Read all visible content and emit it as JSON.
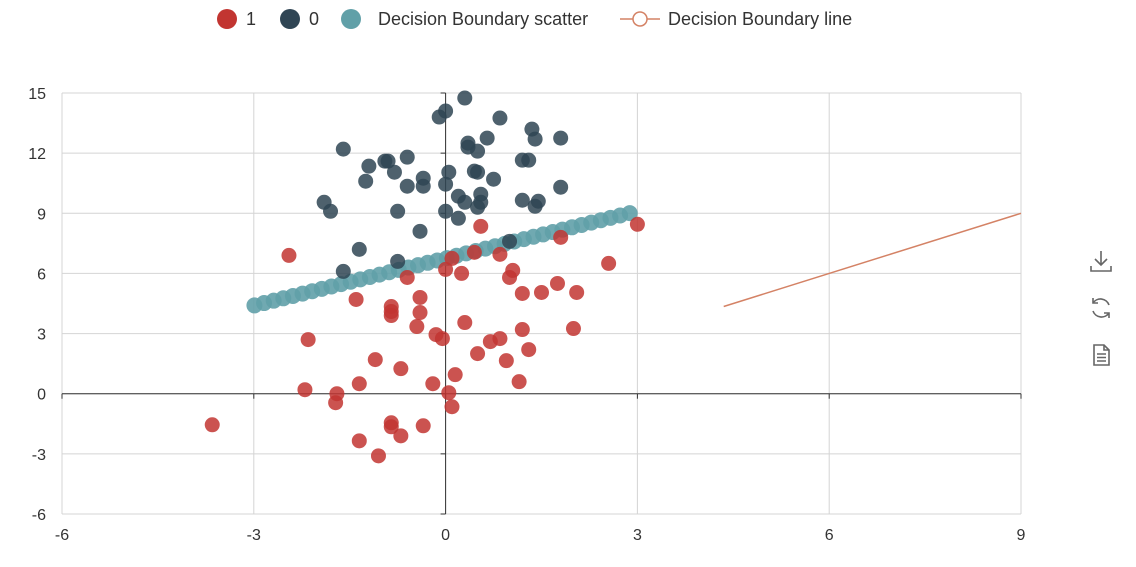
{
  "chart_data": {
    "type": "scatter",
    "legend": {
      "placement": "top",
      "items": [
        {
          "label": "1",
          "color": "#c23531",
          "kind": "scatter"
        },
        {
          "label": "0",
          "color": "#2f4554",
          "kind": "scatter"
        },
        {
          "label": "Decision Boundary scatter",
          "color": "#61a0a8",
          "kind": "scatter"
        },
        {
          "label": "Decision Boundary line",
          "color": "#d48265",
          "kind": "line"
        }
      ]
    },
    "x_axis": {
      "min": -6,
      "max": 9,
      "ticks": [
        -6,
        -3,
        0,
        3,
        6,
        9
      ],
      "grid": true
    },
    "y_axis": {
      "min": -6,
      "max": 15,
      "ticks": [
        -6,
        -3,
        0,
        3,
        6,
        9,
        12,
        15
      ],
      "grid": true
    },
    "series": [
      {
        "name": "1",
        "color": "#c23531",
        "points": [
          [
            -3.65,
            -1.55
          ],
          [
            -2.45,
            6.9
          ],
          [
            -2.15,
            2.7
          ],
          [
            -2.2,
            0.2
          ],
          [
            -1.7,
            0.0
          ],
          [
            -1.72,
            -0.45
          ],
          [
            -1.4,
            4.7
          ],
          [
            -1.35,
            0.5
          ],
          [
            -1.35,
            -2.35
          ],
          [
            -1.1,
            1.7
          ],
          [
            -1.05,
            -3.1
          ],
          [
            -0.85,
            4.35
          ],
          [
            -0.85,
            4.1
          ],
          [
            -0.85,
            3.9
          ],
          [
            -0.85,
            -1.45
          ],
          [
            -0.85,
            -1.65
          ],
          [
            -0.7,
            1.25
          ],
          [
            -0.7,
            -2.1
          ],
          [
            -0.6,
            5.8
          ],
          [
            -0.45,
            3.35
          ],
          [
            -0.4,
            4.8
          ],
          [
            -0.4,
            4.05
          ],
          [
            -0.35,
            -1.6
          ],
          [
            -0.2,
            0.5
          ],
          [
            -0.15,
            2.95
          ],
          [
            -0.05,
            2.75
          ],
          [
            0.0,
            6.2
          ],
          [
            0.05,
            0.05
          ],
          [
            0.1,
            -0.65
          ],
          [
            0.1,
            6.75
          ],
          [
            0.15,
            0.95
          ],
          [
            0.25,
            6.0
          ],
          [
            0.3,
            3.55
          ],
          [
            0.45,
            7.05
          ],
          [
            0.5,
            2.0
          ],
          [
            0.55,
            8.35
          ],
          [
            0.7,
            2.6
          ],
          [
            0.85,
            2.75
          ],
          [
            0.85,
            6.95
          ],
          [
            0.95,
            1.65
          ],
          [
            1.0,
            5.8
          ],
          [
            1.05,
            6.15
          ],
          [
            1.15,
            0.6
          ],
          [
            1.2,
            3.2
          ],
          [
            1.2,
            5.0
          ],
          [
            1.3,
            2.2
          ],
          [
            1.5,
            5.05
          ],
          [
            1.75,
            5.5
          ],
          [
            1.8,
            7.8
          ],
          [
            2.0,
            3.25
          ],
          [
            2.05,
            5.05
          ],
          [
            2.55,
            6.5
          ],
          [
            3.0,
            8.45
          ]
        ]
      },
      {
        "name": "0",
        "color": "#2f4554",
        "points": [
          [
            -1.9,
            9.55
          ],
          [
            -1.8,
            9.1
          ],
          [
            -1.6,
            12.2
          ],
          [
            -1.6,
            6.1
          ],
          [
            -1.35,
            7.2
          ],
          [
            -1.25,
            10.6
          ],
          [
            -1.2,
            11.35
          ],
          [
            -0.95,
            11.6
          ],
          [
            -0.9,
            11.6
          ],
          [
            -0.8,
            11.05
          ],
          [
            -0.75,
            9.1
          ],
          [
            -0.75,
            6.6
          ],
          [
            -0.6,
            11.8
          ],
          [
            -0.6,
            10.35
          ],
          [
            -0.35,
            10.35
          ],
          [
            -0.35,
            10.75
          ],
          [
            -0.4,
            8.1
          ],
          [
            -0.1,
            13.8
          ],
          [
            0.0,
            14.1
          ],
          [
            0.0,
            10.45
          ],
          [
            0.0,
            9.1
          ],
          [
            0.05,
            11.05
          ],
          [
            0.2,
            8.75
          ],
          [
            0.2,
            9.85
          ],
          [
            0.3,
            9.55
          ],
          [
            0.3,
            14.75
          ],
          [
            0.35,
            12.3
          ],
          [
            0.35,
            12.5
          ],
          [
            0.45,
            11.1
          ],
          [
            0.5,
            12.1
          ],
          [
            0.5,
            11.05
          ],
          [
            0.5,
            9.3
          ],
          [
            0.55,
            9.95
          ],
          [
            0.55,
            9.55
          ],
          [
            0.65,
            12.75
          ],
          [
            0.75,
            10.7
          ],
          [
            0.85,
            13.75
          ],
          [
            1.0,
            7.6
          ],
          [
            1.2,
            9.65
          ],
          [
            1.2,
            11.65
          ],
          [
            1.3,
            11.65
          ],
          [
            1.35,
            13.2
          ],
          [
            1.4,
            12.7
          ],
          [
            1.4,
            9.35
          ],
          [
            1.45,
            9.6
          ],
          [
            1.8,
            12.75
          ],
          [
            1.8,
            10.3
          ]
        ]
      },
      {
        "name": "Decision Boundary scatter",
        "color": "#61a0a8",
        "line_x_range": [
          -2.99,
          2.88
        ],
        "equation": "y = 6.75 + 0.7843 * x",
        "point_count": 40
      }
    ],
    "boundary_line": {
      "name": "Decision Boundary line",
      "color": "#d48265",
      "points": [
        [
          4.35,
          4.35
        ],
        [
          9.0,
          9.0
        ]
      ]
    }
  },
  "toolbox": {
    "items": [
      {
        "name": "download-icon",
        "title": "Save as image"
      },
      {
        "name": "refresh-icon",
        "title": "Restore"
      },
      {
        "name": "data-view-icon",
        "title": "Data view"
      }
    ]
  }
}
